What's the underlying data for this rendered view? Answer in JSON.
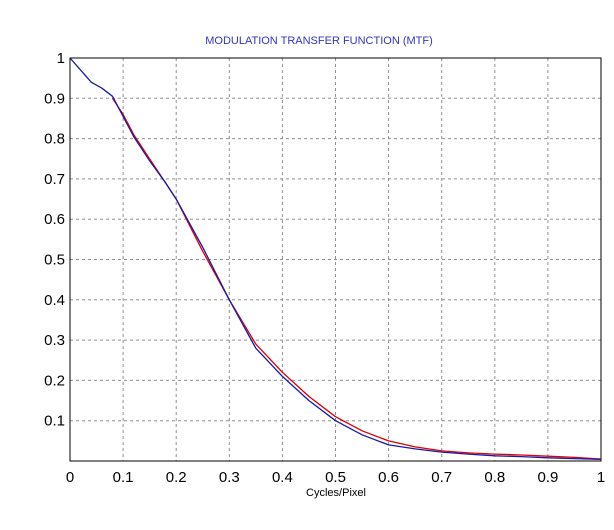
{
  "chart_data": {
    "type": "line",
    "title": "MODULATION TRANSFER FUNCTION (MTF)",
    "xlabel": "Cycles/Pixel",
    "ylabel": "",
    "xlim": [
      0,
      1
    ],
    "ylim": [
      0,
      1
    ],
    "x_ticks": [
      "0",
      "0.1",
      "0.2",
      "0.3",
      "0.4",
      "0.5",
      "0.6",
      "0.7",
      "0.8",
      "0.9",
      "1"
    ],
    "y_ticks": [
      "0.1",
      "0.2",
      "0.3",
      "0.4",
      "0.5",
      "0.6",
      "0.7",
      "0.8",
      "0.9",
      "1"
    ],
    "grid": true,
    "colors": {
      "title": "#3333cc",
      "series_red": "#dd0000",
      "series_blue": "#1a1aaa",
      "grid": "#909090"
    },
    "series": [
      {
        "color": "#dd0000",
        "x": [
          0.08,
          0.1,
          0.12,
          0.15,
          0.18,
          0.2,
          0.25,
          0.3,
          0.35,
          0.4,
          0.45,
          0.5,
          0.55,
          0.6,
          0.65,
          0.7,
          0.75,
          0.8,
          0.85,
          0.9,
          0.95,
          1.0
        ],
        "y": [
          0.9,
          0.86,
          0.81,
          0.75,
          0.69,
          0.65,
          0.52,
          0.4,
          0.29,
          0.22,
          0.16,
          0.11,
          0.075,
          0.05,
          0.035,
          0.025,
          0.02,
          0.017,
          0.015,
          0.012,
          0.009,
          0.005
        ]
      },
      {
        "color": "#1a1aaa",
        "x": [
          0.0,
          0.02,
          0.04,
          0.06,
          0.08,
          0.1,
          0.12,
          0.15,
          0.18,
          0.2,
          0.25,
          0.3,
          0.35,
          0.4,
          0.45,
          0.5,
          0.55,
          0.6,
          0.65,
          0.7,
          0.75,
          0.8,
          0.85,
          0.9,
          0.95,
          1.0
        ],
        "y": [
          1.0,
          0.97,
          0.94,
          0.925,
          0.905,
          0.855,
          0.805,
          0.745,
          0.69,
          0.65,
          0.53,
          0.4,
          0.28,
          0.21,
          0.15,
          0.1,
          0.065,
          0.04,
          0.03,
          0.022,
          0.017,
          0.013,
          0.011,
          0.008,
          0.006,
          0.004
        ]
      }
    ]
  }
}
